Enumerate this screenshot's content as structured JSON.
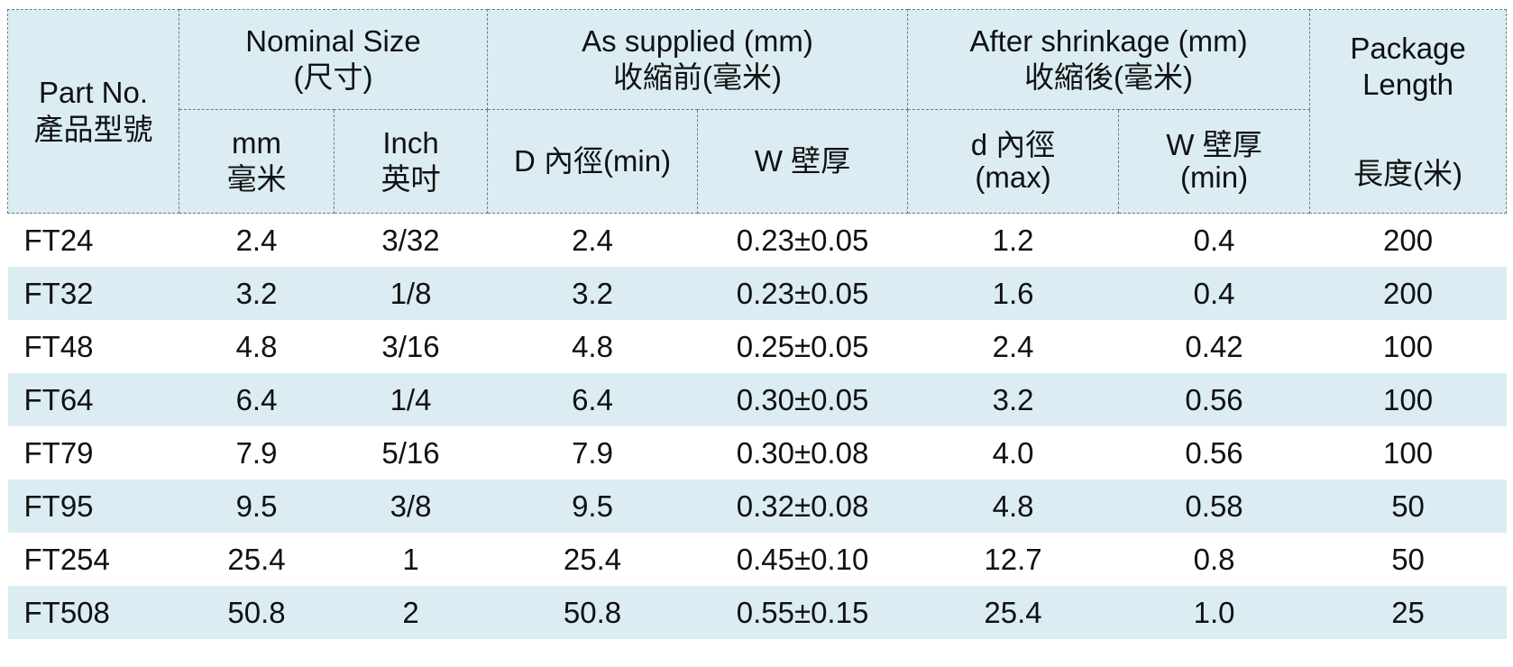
{
  "header": {
    "part_no": {
      "en": "Part No.",
      "zh": "產品型號"
    },
    "nominal_size": {
      "en": "Nominal Size",
      "zh": "(尺寸)"
    },
    "as_supplied": {
      "en": "As supplied (mm)",
      "zh": "收縮前(毫米)"
    },
    "after_shrinkage": {
      "en": "After shrinkage (mm)",
      "zh": "收縮後(毫米)"
    },
    "package_length": {
      "line1": "Package",
      "line2": "Length",
      "zh": "長度(米)"
    },
    "mm": {
      "en": "mm",
      "zh": "毫米"
    },
    "inch": {
      "en": "Inch",
      "zh": "英吋"
    },
    "inner_dia_min": "D  內徑(min)",
    "wall_thickness": "W 壁厚",
    "inner_dia_max": {
      "line1": "d  內徑",
      "line2": "(max)"
    },
    "wall_min": {
      "line1": "W 壁厚",
      "line2": "(min)"
    }
  },
  "rows": [
    {
      "part": "FT24",
      "mm": "2.4",
      "inch": "3/32",
      "d_supplied": "2.4",
      "w_supplied": "0.23±0.05",
      "d_after": "1.2",
      "w_after": "0.4",
      "length": "200"
    },
    {
      "part": "FT32",
      "mm": "3.2",
      "inch": "1/8",
      "d_supplied": "3.2",
      "w_supplied": "0.23±0.05",
      "d_after": "1.6",
      "w_after": "0.4",
      "length": "200"
    },
    {
      "part": "FT48",
      "mm": "4.8",
      "inch": "3/16",
      "d_supplied": "4.8",
      "w_supplied": "0.25±0.05",
      "d_after": "2.4",
      "w_after": "0.42",
      "length": "100"
    },
    {
      "part": "FT64",
      "mm": "6.4",
      "inch": "1/4",
      "d_supplied": "6.4",
      "w_supplied": "0.30±0.05",
      "d_after": "3.2",
      "w_after": "0.56",
      "length": "100"
    },
    {
      "part": "FT79",
      "mm": "7.9",
      "inch": "5/16",
      "d_supplied": "7.9",
      "w_supplied": "0.30±0.08",
      "d_after": "4.0",
      "w_after": "0.56",
      "length": "100"
    },
    {
      "part": "FT95",
      "mm": "9.5",
      "inch": "3/8",
      "d_supplied": "9.5",
      "w_supplied": "0.32±0.08",
      "d_after": "4.8",
      "w_after": "0.58",
      "length": "50"
    },
    {
      "part": "FT254",
      "mm": "25.4",
      "inch": "1",
      "d_supplied": "25.4",
      "w_supplied": "0.45±0.10",
      "d_after": "12.7",
      "w_after": "0.8",
      "length": "50"
    },
    {
      "part": "FT508",
      "mm": "50.8",
      "inch": "2",
      "d_supplied": "50.8",
      "w_supplied": "0.55±0.15",
      "d_after": "25.4",
      "w_after": "1.0",
      "length": "25"
    }
  ]
}
